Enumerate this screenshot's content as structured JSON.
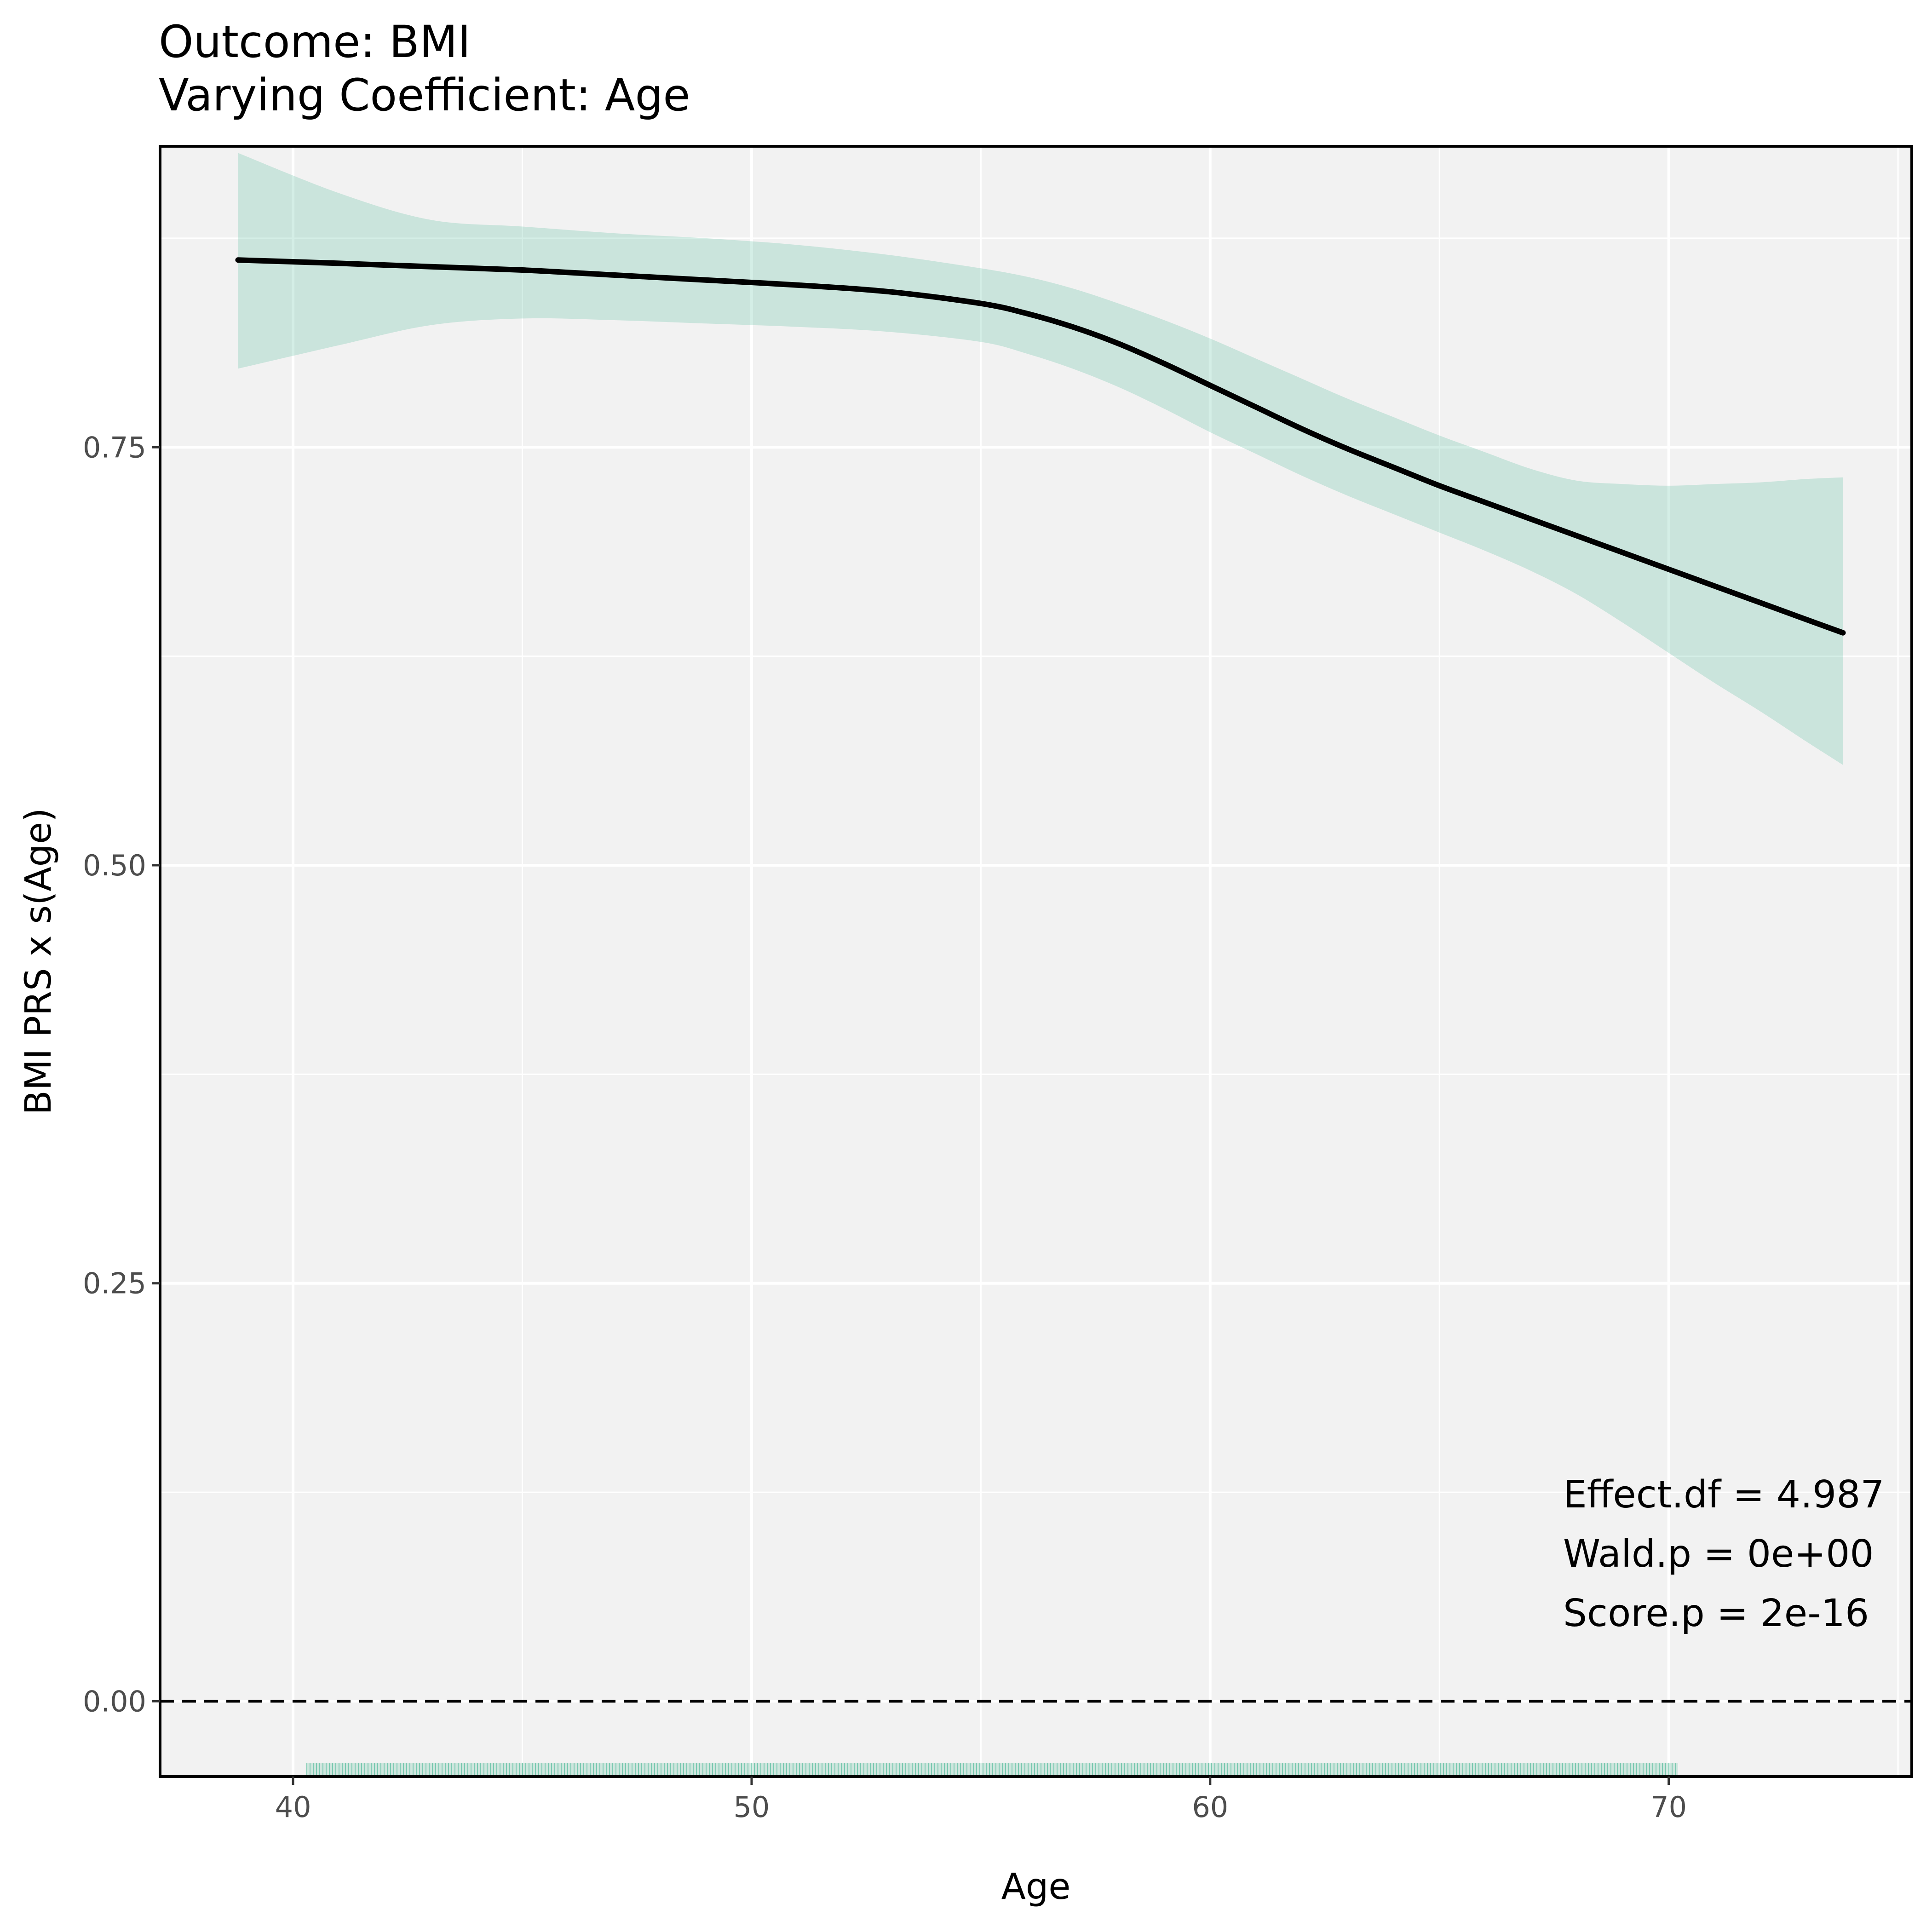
{
  "chart_data": {
    "type": "line",
    "title": "Outcome: BMI",
    "subtitle": "Varying Coefficient: Age",
    "xlabel": "Age",
    "ylabel": "BMI PRS x s(Age)",
    "xlim": [
      37.1,
      75.3
    ],
    "ylim": [
      -0.045,
      0.93
    ],
    "x_ticks": [
      40,
      50,
      60,
      70
    ],
    "x_tick_labels": [
      "40",
      "50",
      "60",
      "70"
    ],
    "y_ticks": [
      0,
      0.25,
      0.5,
      0.75
    ],
    "y_tick_labels": [
      "0.00",
      "0.25",
      "0.50",
      "0.75"
    ],
    "grid": true,
    "reference_line": {
      "y": 0,
      "style": "dashed"
    },
    "series": [
      {
        "x": [
          38.8,
          41,
          43,
          45,
          47,
          49,
          51,
          53,
          55,
          56,
          57,
          58,
          59,
          60,
          61,
          62,
          63,
          64,
          65,
          66,
          67,
          68,
          69,
          70,
          71,
          72,
          73,
          73.8
        ],
        "y": [
          0.862,
          0.86,
          0.858,
          0.856,
          0.853,
          0.85,
          0.847,
          0.843,
          0.836,
          0.83,
          0.822,
          0.812,
          0.8,
          0.787,
          0.774,
          0.761,
          0.749,
          0.738,
          0.727,
          0.717,
          0.707,
          0.697,
          0.687,
          0.677,
          0.667,
          0.657,
          0.647,
          0.639
        ],
        "lower": [
          0.797,
          0.811,
          0.823,
          0.827,
          0.826,
          0.824,
          0.822,
          0.819,
          0.813,
          0.806,
          0.797,
          0.786,
          0.773,
          0.759,
          0.746,
          0.733,
          0.721,
          0.71,
          0.699,
          0.688,
          0.676,
          0.662,
          0.645,
          0.627,
          0.609,
          0.592,
          0.574,
          0.56
        ],
        "upper": [
          0.926,
          0.902,
          0.886,
          0.882,
          0.878,
          0.875,
          0.871,
          0.865,
          0.857,
          0.852,
          0.845,
          0.836,
          0.826,
          0.815,
          0.803,
          0.791,
          0.779,
          0.768,
          0.757,
          0.747,
          0.737,
          0.73,
          0.728,
          0.727,
          0.728,
          0.729,
          0.731,
          0.732
        ],
        "color": "#000000",
        "ribbon_color": "#66c2a5"
      }
    ],
    "rug": {
      "x_min": 40.3,
      "x_max": 70.2,
      "color": "#66c2a5"
    },
    "annotations": [
      "Effect.df = 4.987",
      "Wald.p = 0e+00",
      "Score.p = 2e-16"
    ]
  }
}
